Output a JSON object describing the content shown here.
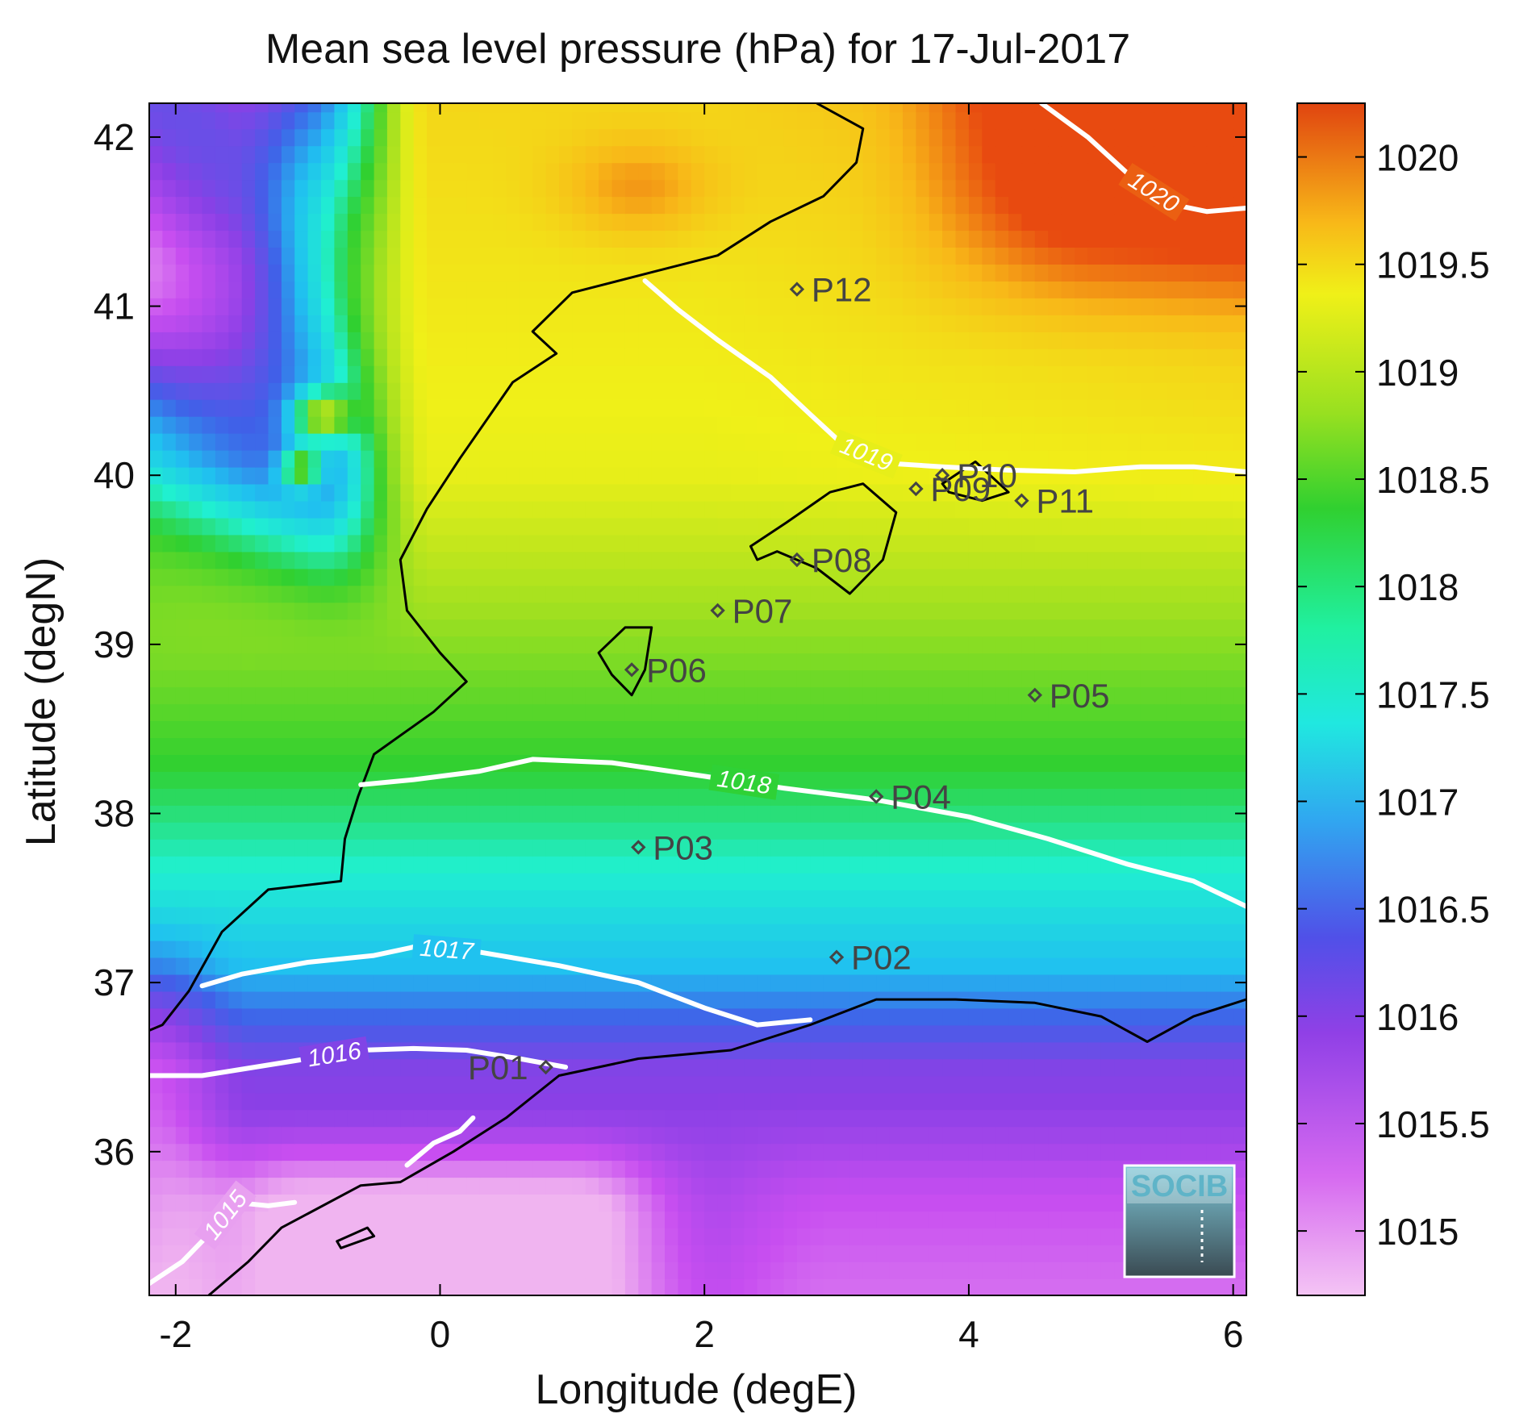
{
  "title": "Mean sea level pressure (hPa) for 17-Jul-2017",
  "xlabel": "Longitude (degE)",
  "ylabel": "Latitude (degN)",
  "chart_data": {
    "type": "heatmap",
    "title": "Mean sea level pressure (hPa) for 17-Jul-2017",
    "xlabel": "Longitude (degE)",
    "ylabel": "Latitude (degN)",
    "xlim": [
      -2.2,
      6.1
    ],
    "ylim": [
      35.15,
      42.2
    ],
    "x_ticks": [
      -2,
      0,
      2,
      4,
      6
    ],
    "y_ticks": [
      36,
      37,
      38,
      39,
      40,
      41,
      42
    ],
    "x_tick_labels": [
      "-2",
      "0",
      "2",
      "4",
      "6"
    ],
    "y_tick_labels": [
      "36",
      "37",
      "38",
      "39",
      "40",
      "41",
      "42"
    ],
    "colorbar": {
      "range": [
        1014.7,
        1020.25
      ],
      "ticks": [
        1015,
        1015.5,
        1016,
        1016.5,
        1017,
        1017.5,
        1018,
        1018.5,
        1019,
        1019.5,
        1020
      ],
      "tick_labels": [
        "1015",
        "1015.5",
        "1016",
        "1016.5",
        "1017",
        "1017.5",
        "1018",
        "1018.5",
        "1019",
        "1019.5",
        "1020"
      ]
    },
    "contours": [
      {
        "level": 1015,
        "label": "1015",
        "points": [
          [
            -2.2,
            35.22
          ],
          [
            -1.95,
            35.35
          ],
          [
            -1.7,
            35.55
          ],
          [
            -1.55,
            35.7
          ],
          [
            -1.3,
            35.68
          ],
          [
            -1.1,
            35.7
          ]
        ]
      },
      {
        "level": 1016,
        "label": "1016",
        "points": [
          [
            -2.2,
            36.45
          ],
          [
            -1.8,
            36.45
          ],
          [
            -1.4,
            36.5
          ],
          [
            -1.0,
            36.55
          ],
          [
            -0.6,
            36.6
          ],
          [
            -0.2,
            36.61
          ],
          [
            0.2,
            36.6
          ],
          [
            0.6,
            36.55
          ],
          [
            0.95,
            36.5
          ]
        ]
      },
      {
        "level": 1016,
        "label": "",
        "points": [
          [
            -0.25,
            35.92
          ],
          [
            -0.05,
            36.05
          ],
          [
            0.15,
            36.12
          ],
          [
            0.25,
            36.2
          ]
        ]
      },
      {
        "level": 1017,
        "label": "1017",
        "points": [
          [
            -1.8,
            36.98
          ],
          [
            -1.5,
            37.05
          ],
          [
            -1.0,
            37.12
          ],
          [
            -0.5,
            37.16
          ],
          [
            -0.2,
            37.21
          ],
          [
            0.3,
            37.18
          ],
          [
            0.9,
            37.1
          ],
          [
            1.5,
            37.0
          ],
          [
            2.0,
            36.85
          ],
          [
            2.4,
            36.75
          ],
          [
            2.8,
            36.78
          ]
        ]
      },
      {
        "level": 1018,
        "label": "1018",
        "points": [
          [
            -0.6,
            38.17
          ],
          [
            -0.2,
            38.2
          ],
          [
            0.3,
            38.25
          ],
          [
            0.7,
            38.32
          ],
          [
            1.3,
            38.3
          ],
          [
            2.0,
            38.22
          ],
          [
            2.6,
            38.15
          ],
          [
            3.3,
            38.08
          ],
          [
            4.0,
            37.98
          ],
          [
            4.6,
            37.85
          ],
          [
            5.2,
            37.7
          ],
          [
            5.7,
            37.6
          ],
          [
            6.1,
            37.45
          ]
        ]
      },
      {
        "level": 1019,
        "label": "1019",
        "points": [
          [
            1.55,
            41.15
          ],
          [
            1.8,
            40.98
          ],
          [
            2.1,
            40.8
          ],
          [
            2.5,
            40.58
          ],
          [
            2.8,
            40.36
          ],
          [
            3.05,
            40.18
          ],
          [
            3.4,
            40.07
          ],
          [
            3.8,
            40.05
          ],
          [
            4.3,
            40.03
          ],
          [
            4.8,
            40.02
          ],
          [
            5.3,
            40.05
          ],
          [
            5.7,
            40.05
          ],
          [
            6.1,
            40.02
          ]
        ]
      },
      {
        "level": 1020,
        "label": "1020",
        "points": [
          [
            4.55,
            42.2
          ],
          [
            4.9,
            42.0
          ],
          [
            5.25,
            41.75
          ],
          [
            5.55,
            41.6
          ],
          [
            5.8,
            41.56
          ],
          [
            6.1,
            41.58
          ]
        ]
      }
    ],
    "stations": [
      {
        "name": "P01",
        "lon": 0.8,
        "lat": 36.5
      },
      {
        "name": "P02",
        "lon": 3.0,
        "lat": 37.15
      },
      {
        "name": "P03",
        "lon": 1.5,
        "lat": 37.8
      },
      {
        "name": "P04",
        "lon": 3.3,
        "lat": 38.1
      },
      {
        "name": "P05",
        "lon": 4.5,
        "lat": 38.7
      },
      {
        "name": "P06",
        "lon": 1.45,
        "lat": 38.85
      },
      {
        "name": "P07",
        "lon": 2.1,
        "lat": 39.2
      },
      {
        "name": "P08",
        "lon": 2.7,
        "lat": 39.5
      },
      {
        "name": "P09",
        "lon": 3.6,
        "lat": 39.92
      },
      {
        "name": "P10",
        "lon": 3.8,
        "lat": 40.0
      },
      {
        "name": "P11",
        "lon": 4.4,
        "lat": 39.85
      },
      {
        "name": "P12",
        "lon": 2.7,
        "lat": 41.1
      }
    ],
    "colors": {
      "ramp": [
        "#f0b4f0",
        "#c84ef0",
        "#8a40e6",
        "#4060e8",
        "#20c0f0",
        "#20f0d0",
        "#30d030",
        "#a0e020",
        "#f0f018",
        "#f8b818",
        "#e84a10"
      ],
      "coastline": "#000000",
      "contour": "#ffffff",
      "station": "#444444"
    }
  },
  "logo": {
    "text": "SOCIB"
  }
}
